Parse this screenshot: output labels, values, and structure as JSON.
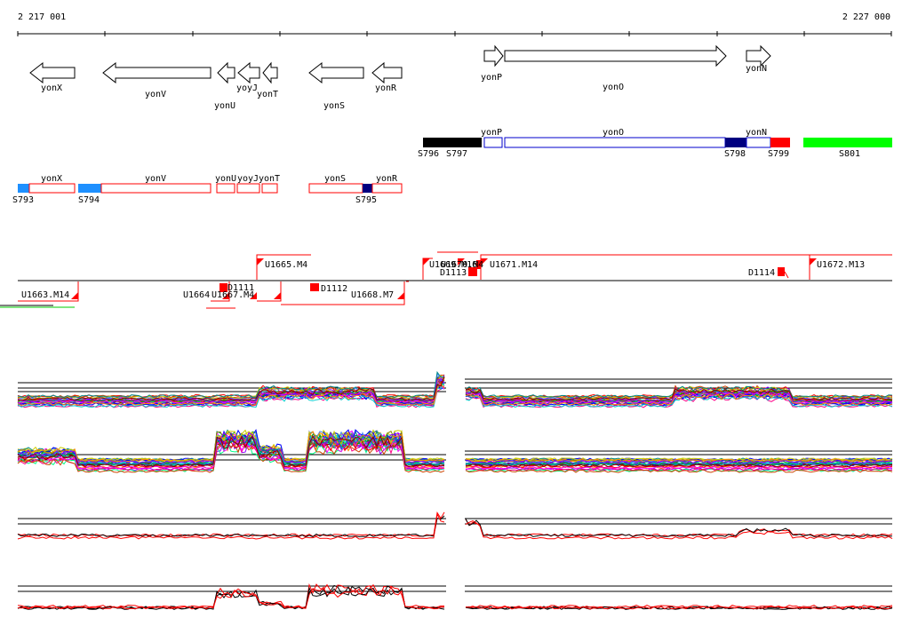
{
  "coordinates": {
    "start": "2 217 001",
    "end": "2 227 000"
  },
  "genes": {
    "yonX": "yonX",
    "yonV": "yonV",
    "yonU": "yonU",
    "yoyJ": "yoyJ",
    "yonT": "yonT",
    "yonS": "yonS",
    "yonR": "yonR",
    "yonP": "yonP",
    "yonO": "yonO",
    "yonN": "yonN"
  },
  "segments": {
    "S793": "S793",
    "S794": "S794",
    "S795": "S795",
    "S796": "S796",
    "S797": "S797",
    "S798": "S798",
    "S799": "S799",
    "S801": "S801"
  },
  "features": {
    "U1663": "U1663.M14",
    "U1665": "U1665.M4",
    "U1668": "U1668.M7",
    "U1671": "U1671.M14",
    "U1672": "U1672.M13",
    "D1111": "D1111",
    "D1112": "D1112",
    "D1113": "D1113",
    "D1114": "D1114",
    "U1664": "U1664",
    "U1669": "U1669.M16",
    "U1670": "U1670.M4",
    "U1667": "U1667.M4"
  },
  "colors": {
    "segment_black": "#000000",
    "segment_navy": "#000080",
    "segment_red": "#ff0000",
    "segment_green": "#00ff00",
    "segment_light_blue": "#1e90ff",
    "box_outline_red": "#ff0000",
    "box_outline_blue": "#0000cd"
  }
}
